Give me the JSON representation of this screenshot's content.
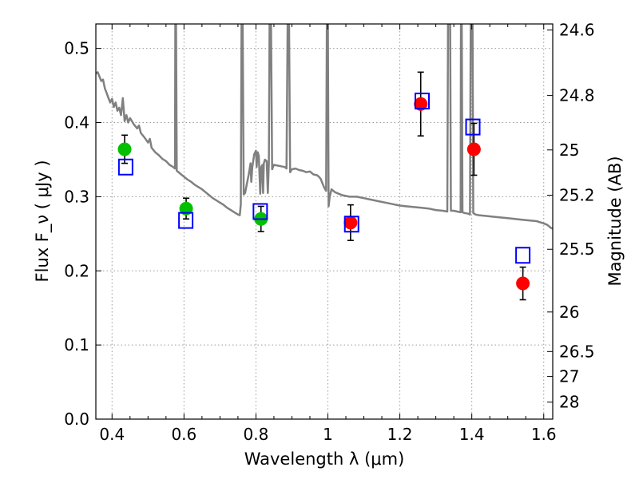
{
  "chart_data": {
    "type": "scatter",
    "xlabel": "Wavelength  λ (μm)",
    "ylabel": "Flux  F_ν  ( μJy )",
    "ylabel_right": "Magnitude (AB)",
    "xlim": [
      0.355,
      1.625
    ],
    "ylim": [
      0.0,
      0.533
    ],
    "grid": true,
    "x_ticks": [
      0.4,
      0.6,
      0.8,
      1.0,
      1.2,
      1.4,
      1.6
    ],
    "x_tick_labels": [
      "0.4",
      "0.6",
      "0.8",
      "1",
      "1.2",
      "1.4",
      "1.6"
    ],
    "y_ticks": [
      0.0,
      0.1,
      0.2,
      0.3,
      0.4,
      0.5
    ],
    "y_tick_labels": [
      "0.0",
      "0.1",
      "0.2",
      "0.3",
      "0.4",
      "0.5"
    ],
    "mag_ticks": [
      {
        "label": "24.6",
        "flux": 0.5248
      },
      {
        "label": "24.8",
        "flux": 0.4365
      },
      {
        "label": "25",
        "flux": 0.3631
      },
      {
        "label": "25.2",
        "flux": 0.302
      },
      {
        "label": "25.5",
        "flux": 0.2291
      },
      {
        "label": "26",
        "flux": 0.1445
      },
      {
        "label": "26.5",
        "flux": 0.0912
      },
      {
        "label": "27",
        "flux": 0.0575
      },
      {
        "label": "28",
        "flux": 0.0229
      }
    ],
    "colors": {
      "template": "#808080",
      "model": "#0000ff",
      "optical": "#00c000",
      "nir": "#ff0000",
      "grid": "#9a9a9a"
    },
    "series": [
      {
        "kind": "points",
        "color_key": "optical",
        "points": [
          {
            "x": 0.435,
            "y": 0.364,
            "err": 0.019
          },
          {
            "x": 0.606,
            "y": 0.284,
            "err": 0.014
          },
          {
            "x": 0.814,
            "y": 0.27,
            "err": 0.017
          }
        ]
      },
      {
        "kind": "points",
        "color_key": "nir",
        "points": [
          {
            "x": 1.063,
            "y": 0.265,
            "err": 0.024
          },
          {
            "x": 1.258,
            "y": 0.425,
            "err": 0.043
          },
          {
            "x": 1.406,
            "y": 0.364,
            "err": 0.035
          },
          {
            "x": 1.542,
            "y": 0.183,
            "err": 0.022
          }
        ]
      },
      {
        "kind": "squares",
        "color_key": "model",
        "points": [
          {
            "x": 0.438,
            "y": 0.34
          },
          {
            "x": 0.605,
            "y": 0.268
          },
          {
            "x": 0.812,
            "y": 0.28
          },
          {
            "x": 1.066,
            "y": 0.263
          },
          {
            "x": 1.262,
            "y": 0.429
          },
          {
            "x": 1.403,
            "y": 0.394
          },
          {
            "x": 1.542,
            "y": 0.221
          }
        ]
      },
      {
        "kind": "template",
        "color_key": "template",
        "points": [
          [
            0.355,
            0.466
          ],
          [
            0.36,
            0.468
          ],
          [
            0.365,
            0.462
          ],
          [
            0.37,
            0.456
          ],
          [
            0.375,
            0.458
          ],
          [
            0.38,
            0.446
          ],
          [
            0.385,
            0.44
          ],
          [
            0.39,
            0.433
          ],
          [
            0.395,
            0.427
          ],
          [
            0.4,
            0.432
          ],
          [
            0.405,
            0.421
          ],
          [
            0.41,
            0.427
          ],
          [
            0.415,
            0.416
          ],
          [
            0.42,
            0.42
          ],
          [
            0.425,
            0.41
          ],
          [
            0.43,
            0.433
          ],
          [
            0.435,
            0.402
          ],
          [
            0.44,
            0.41
          ],
          [
            0.445,
            0.4
          ],
          [
            0.45,
            0.406
          ],
          [
            0.46,
            0.398
          ],
          [
            0.47,
            0.392
          ],
          [
            0.475,
            0.396
          ],
          [
            0.48,
            0.386
          ],
          [
            0.49,
            0.38
          ],
          [
            0.5,
            0.373
          ],
          [
            0.505,
            0.378
          ],
          [
            0.51,
            0.366
          ],
          [
            0.52,
            0.36
          ],
          [
            0.53,
            0.356
          ],
          [
            0.54,
            0.351
          ],
          [
            0.55,
            0.348
          ],
          [
            0.56,
            0.343
          ],
          [
            0.57,
            0.34
          ],
          [
            0.575,
            0.338
          ],
          [
            0.576,
            0.533
          ],
          [
            0.578,
            0.533
          ],
          [
            0.58,
            0.335
          ],
          [
            0.59,
            0.331
          ],
          [
            0.6,
            0.327
          ],
          [
            0.61,
            0.323
          ],
          [
            0.62,
            0.32
          ],
          [
            0.63,
            0.316
          ],
          [
            0.64,
            0.313
          ],
          [
            0.65,
            0.31
          ],
          [
            0.66,
            0.306
          ],
          [
            0.67,
            0.302
          ],
          [
            0.68,
            0.298
          ],
          [
            0.69,
            0.295
          ],
          [
            0.7,
            0.292
          ],
          [
            0.71,
            0.289
          ],
          [
            0.72,
            0.285
          ],
          [
            0.73,
            0.282
          ],
          [
            0.74,
            0.279
          ],
          [
            0.75,
            0.276
          ],
          [
            0.755,
            0.275
          ],
          [
            0.758,
            0.29
          ],
          [
            0.76,
            0.533
          ],
          [
            0.763,
            0.533
          ],
          [
            0.766,
            0.303
          ],
          [
            0.77,
            0.305
          ],
          [
            0.775,
            0.318
          ],
          [
            0.78,
            0.33
          ],
          [
            0.785,
            0.345
          ],
          [
            0.787,
            0.32
          ],
          [
            0.79,
            0.34
          ],
          [
            0.795,
            0.357
          ],
          [
            0.8,
            0.362
          ],
          [
            0.802,
            0.34
          ],
          [
            0.805,
            0.36
          ],
          [
            0.808,
            0.355
          ],
          [
            0.81,
            0.33
          ],
          [
            0.812,
            0.304
          ],
          [
            0.815,
            0.34
          ],
          [
            0.818,
            0.343
          ],
          [
            0.82,
            0.305
          ],
          [
            0.822,
            0.345
          ],
          [
            0.825,
            0.35
          ],
          [
            0.83,
            0.348
          ],
          [
            0.833,
            0.305
          ],
          [
            0.836,
            0.345
          ],
          [
            0.838,
            0.533
          ],
          [
            0.842,
            0.533
          ],
          [
            0.845,
            0.337
          ],
          [
            0.85,
            0.343
          ],
          [
            0.86,
            0.342
          ],
          [
            0.87,
            0.341
          ],
          [
            0.88,
            0.34
          ],
          [
            0.885,
            0.338
          ],
          [
            0.888,
            0.533
          ],
          [
            0.892,
            0.533
          ],
          [
            0.895,
            0.333
          ],
          [
            0.9,
            0.337
          ],
          [
            0.91,
            0.338
          ],
          [
            0.92,
            0.336
          ],
          [
            0.93,
            0.335
          ],
          [
            0.94,
            0.333
          ],
          [
            0.95,
            0.334
          ],
          [
            0.96,
            0.33
          ],
          [
            0.97,
            0.329
          ],
          [
            0.975,
            0.327
          ],
          [
            0.98,
            0.324
          ],
          [
            0.985,
            0.318
          ],
          [
            0.99,
            0.312
          ],
          [
            0.995,
            0.308
          ],
          [
            0.997,
            0.533
          ],
          [
            1.0,
            0.533
          ],
          [
            1.002,
            0.287
          ],
          [
            1.005,
            0.3
          ],
          [
            1.01,
            0.31
          ],
          [
            1.02,
            0.306
          ],
          [
            1.03,
            0.304
          ],
          [
            1.04,
            0.302
          ],
          [
            1.06,
            0.3
          ],
          [
            1.08,
            0.3
          ],
          [
            1.1,
            0.298
          ],
          [
            1.12,
            0.296
          ],
          [
            1.14,
            0.294
          ],
          [
            1.16,
            0.292
          ],
          [
            1.18,
            0.29
          ],
          [
            1.2,
            0.288
          ],
          [
            1.22,
            0.287
          ],
          [
            1.24,
            0.286
          ],
          [
            1.26,
            0.285
          ],
          [
            1.28,
            0.284
          ],
          [
            1.3,
            0.282
          ],
          [
            1.32,
            0.281
          ],
          [
            1.332,
            0.28
          ],
          [
            1.334,
            0.533
          ],
          [
            1.34,
            0.533
          ],
          [
            1.342,
            0.281
          ],
          [
            1.35,
            0.281
          ],
          [
            1.36,
            0.28
          ],
          [
            1.369,
            0.279
          ],
          [
            1.37,
            0.533
          ],
          [
            1.372,
            0.533
          ],
          [
            1.374,
            0.279
          ],
          [
            1.38,
            0.278
          ],
          [
            1.39,
            0.277
          ],
          [
            1.395,
            0.276
          ],
          [
            1.397,
            0.533
          ],
          [
            1.402,
            0.533
          ],
          [
            1.404,
            0.278
          ],
          [
            1.41,
            0.276
          ],
          [
            1.42,
            0.275
          ],
          [
            1.44,
            0.274
          ],
          [
            1.46,
            0.273
          ],
          [
            1.48,
            0.272
          ],
          [
            1.5,
            0.271
          ],
          [
            1.52,
            0.27
          ],
          [
            1.54,
            0.269
          ],
          [
            1.56,
            0.268
          ],
          [
            1.58,
            0.267
          ],
          [
            1.6,
            0.264
          ],
          [
            1.61,
            0.262
          ],
          [
            1.62,
            0.258
          ],
          [
            1.625,
            0.257
          ]
        ]
      }
    ]
  }
}
